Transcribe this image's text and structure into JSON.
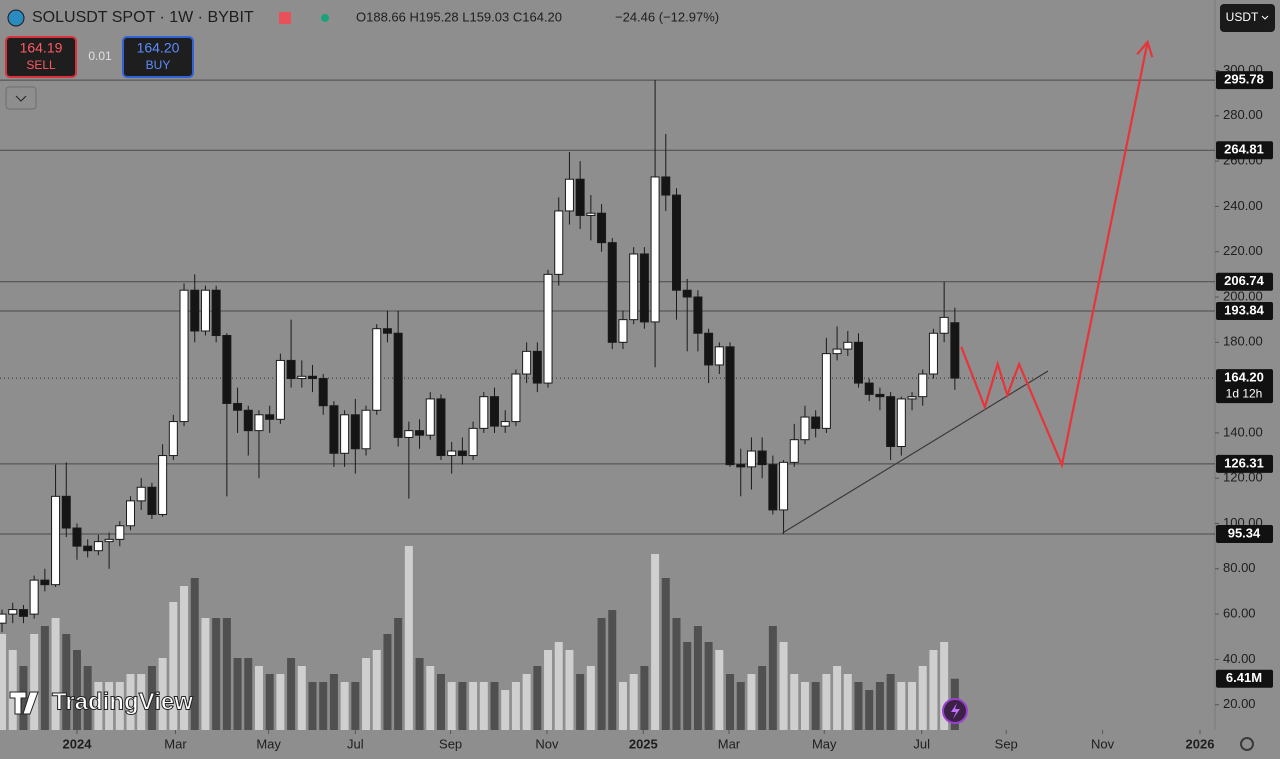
{
  "chart_data": {
    "type": "candlestick",
    "title": "SOLUSDT SPOT · 1W · BYBIT",
    "ohlc_text": "O188.66 H195.28 L159.03 C164.20",
    "change_text": "−24.46 (−12.97%)",
    "sell": {
      "price": "164.19",
      "label": "SELL"
    },
    "buy": {
      "price": "164.20",
      "label": "BUY"
    },
    "spread": "0.01",
    "currency": "USDT",
    "logo": "TradingView",
    "countdown": "1d 12h",
    "last_price": {
      "value": 164.2,
      "label": "164.20"
    },
    "last_volume": {
      "value": 6.41,
      "label": "6.41M"
    },
    "levels": [
      295.78,
      264.81,
      206.74,
      193.84,
      126.31,
      95.34
    ],
    "open": [
      56,
      60,
      62,
      60,
      75,
      73,
      112,
      98,
      90,
      88,
      92,
      93,
      99,
      110,
      116,
      104,
      130,
      145,
      203,
      185,
      203,
      183,
      153,
      150,
      141,
      148,
      146,
      172,
      164,
      165,
      164,
      152,
      131,
      148,
      133,
      150,
      186,
      184,
      138,
      141,
      139,
      155,
      130,
      132,
      130,
      142,
      156,
      143,
      145,
      166,
      176,
      162,
      210,
      238,
      252,
      236,
      237,
      224,
      180,
      190,
      219,
      189,
      253,
      245,
      203,
      200,
      184,
      170,
      178,
      126,
      125,
      132,
      126,
      106,
      127,
      137,
      147,
      142,
      175,
      177,
      180,
      162,
      157,
      156,
      134,
      155,
      156,
      166,
      184,
      188.66
    ],
    "high": [
      62,
      65,
      64,
      77,
      80,
      126,
      127,
      100,
      93,
      95,
      96,
      101,
      112,
      120,
      118,
      135,
      148,
      206,
      210,
      205,
      205,
      184,
      160,
      152,
      150,
      152,
      175,
      190,
      172,
      170,
      166,
      154,
      150,
      155,
      152,
      188,
      194,
      194,
      145,
      146,
      158,
      157,
      136,
      138,
      145,
      158,
      160,
      150,
      168,
      180,
      180,
      212,
      244,
      264,
      260,
      245,
      241,
      226,
      194,
      222,
      222,
      295.78,
      272,
      248,
      208,
      203,
      186,
      180,
      180,
      133,
      138,
      138,
      130,
      128,
      144,
      152,
      150,
      182,
      187,
      185,
      184,
      164,
      160,
      158,
      156,
      158,
      168,
      186,
      206.74,
      195.28
    ],
    "low": [
      52,
      56,
      56,
      58,
      70,
      72,
      94,
      84,
      85,
      86,
      80,
      90,
      97,
      106,
      102,
      103,
      128,
      143,
      180,
      183,
      180,
      112,
      140,
      130,
      120,
      140,
      144,
      160,
      160,
      158,
      148,
      125,
      125,
      122,
      130,
      148,
      180,
      134,
      111,
      133,
      137,
      128,
      122,
      126,
      128,
      140,
      140,
      140,
      143,
      162,
      158,
      160,
      205,
      232,
      230,
      225,
      220,
      177,
      177,
      188,
      186,
      169,
      238,
      190,
      176,
      176,
      162,
      166,
      125,
      112,
      115,
      120,
      104,
      95.34,
      125,
      135,
      138,
      140,
      172,
      174,
      160,
      154,
      150,
      128,
      130,
      150,
      152,
      164,
      180,
      159.03
    ],
    "close": [
      60,
      62,
      59,
      75,
      73,
      112,
      98,
      90,
      88,
      92,
      93,
      99,
      110,
      116,
      104,
      130,
      145,
      203,
      185,
      203,
      183,
      153,
      150,
      141,
      148,
      146,
      172,
      164,
      165,
      164,
      152,
      131,
      148,
      133,
      150,
      186,
      184,
      138,
      141,
      139,
      155,
      130,
      132,
      130,
      142,
      156,
      143,
      145,
      166,
      176,
      162,
      210,
      238,
      252,
      236,
      237,
      224,
      180,
      190,
      219,
      189,
      253,
      245,
      203,
      200,
      184,
      170,
      178,
      126,
      125,
      132,
      126,
      106,
      127,
      137,
      147,
      142,
      175,
      177,
      180,
      162,
      157,
      156,
      134,
      155,
      156,
      166,
      184,
      191,
      164.2
    ],
    "volume": [
      12,
      10,
      8,
      12,
      13,
      14,
      12,
      10,
      8,
      6,
      6,
      6,
      7,
      7,
      8,
      9,
      16,
      18,
      19,
      14,
      14,
      14,
      9,
      9,
      8,
      7,
      7,
      9,
      8,
      6,
      6,
      7,
      6,
      6,
      9,
      10,
      12,
      14,
      23,
      9,
      8,
      7,
      6,
      6,
      6,
      6,
      6,
      5,
      6,
      7,
      8,
      10,
      11,
      10,
      7,
      8,
      14,
      15,
      6,
      7,
      8,
      22,
      19,
      14,
      11,
      13,
      11,
      10,
      7,
      6,
      7,
      8,
      13,
      11,
      7,
      6,
      6,
      7,
      8,
      7,
      6,
      5,
      6,
      7,
      6,
      6,
      8,
      10,
      11,
      6.41
    ],
    "xlim": [
      -0.19,
      113.3
    ],
    "ylim": [
      8.83,
      331.13
    ],
    "y2lim": [
      0,
      91.25
    ],
    "yticks": [
      {
        "value": 300,
        "label": "300.00"
      },
      {
        "value": 280,
        "label": "280.00"
      },
      {
        "value": 260,
        "label": "260.00"
      },
      {
        "value": 240,
        "label": "240.00"
      },
      {
        "value": 220,
        "label": "220.00"
      },
      {
        "value": 200,
        "label": "200.00"
      },
      {
        "value": 180,
        "label": "180.00"
      },
      {
        "value": 140,
        "label": "140.00"
      },
      {
        "value": 120,
        "label": "120.00"
      },
      {
        "value": 100,
        "label": "100.00"
      },
      {
        "value": 80,
        "label": "80.00"
      },
      {
        "value": 60,
        "label": "60.00"
      },
      {
        "value": 40,
        "label": "40.00"
      },
      {
        "value": 20,
        "label": "20.00"
      }
    ],
    "xticks": [
      {
        "value": 7.0,
        "label": "2024"
      },
      {
        "value": 16.2,
        "label": "Mar"
      },
      {
        "value": 24.9,
        "label": "May"
      },
      {
        "value": 33.0,
        "label": "Jul"
      },
      {
        "value": 41.9,
        "label": "Sep"
      },
      {
        "value": 50.9,
        "label": "Nov"
      },
      {
        "value": 59.9,
        "label": "2025"
      },
      {
        "value": 67.9,
        "label": "Mar"
      },
      {
        "value": 76.8,
        "label": "May"
      },
      {
        "value": 85.9,
        "label": "Jul"
      },
      {
        "value": 93.8,
        "label": "Sep"
      },
      {
        "value": 102.8,
        "label": "Nov"
      },
      {
        "value": 111.9,
        "label": "2026"
      }
    ],
    "trendline": [
      [
        72.9,
        95.8
      ],
      [
        97.7,
        167.3
      ]
    ],
    "projection": [
      [
        89.6,
        178
      ],
      [
        91.8,
        151.4
      ],
      [
        93.0,
        170.4
      ],
      [
        93.9,
        156.7
      ],
      [
        95.0,
        170.4
      ],
      [
        99.0,
        125.8
      ],
      [
        107.0,
        312.6
      ]
    ],
    "grid": false,
    "up_color": "#ffffff",
    "down_color": "#151515",
    "volume_up_color": "#cfcfcf",
    "volume_down_color": "#505050",
    "projection_color": "#e8333a",
    "trendline_color": "#3a3a3a",
    "level_color": "#4a4a4a"
  }
}
